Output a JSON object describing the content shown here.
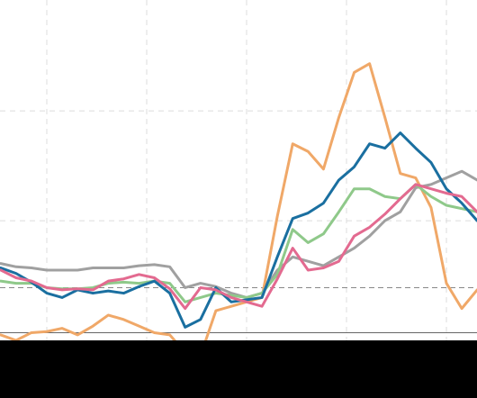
{
  "chart_data": {
    "type": "line",
    "xlim": [
      -6.09,
      55.98
    ],
    "xticks": [
      0,
      13,
      26,
      39,
      52
    ],
    "ylim": [
      -0.09,
      3.01
    ],
    "yticks": [
      1,
      2
    ],
    "grid": true,
    "hlines": [
      0.39,
      -0.02
    ],
    "x": [
      -6,
      -4,
      -2,
      0,
      2,
      4,
      6,
      8,
      10,
      12,
      14,
      16,
      18,
      20,
      22,
      24,
      26,
      28,
      30,
      32,
      34,
      36,
      38,
      40,
      42,
      44,
      46,
      48,
      50,
      52,
      54,
      56
    ],
    "series": [
      {
        "color": "#f0a868",
        "values": [
          -0.04,
          -0.09,
          -0.02,
          -0.01,
          0.02,
          -0.04,
          0.04,
          0.14,
          0.1,
          0.04,
          -0.02,
          -0.04,
          -0.2,
          -0.23,
          0.18,
          0.22,
          0.26,
          0.3,
          1.04,
          1.7,
          1.63,
          1.47,
          1.94,
          2.35,
          2.43,
          1.94,
          1.43,
          1.39,
          1.12,
          0.43,
          0.2,
          0.37
        ]
      },
      {
        "color": "#a0a0a0",
        "values": [
          0.61,
          0.58,
          0.57,
          0.55,
          0.55,
          0.55,
          0.57,
          0.57,
          0.57,
          0.59,
          0.6,
          0.58,
          0.39,
          0.43,
          0.4,
          0.34,
          0.3,
          0.34,
          0.55,
          0.67,
          0.63,
          0.59,
          0.67,
          0.75,
          0.86,
          1.0,
          1.08,
          1.3,
          1.33,
          1.39,
          1.45,
          1.37
        ]
      },
      {
        "color": "#8fc98a",
        "values": [
          0.45,
          0.43,
          0.43,
          0.39,
          0.38,
          0.38,
          0.39,
          0.43,
          0.44,
          0.43,
          0.45,
          0.43,
          0.26,
          0.3,
          0.34,
          0.32,
          0.3,
          0.34,
          0.51,
          0.92,
          0.8,
          0.88,
          1.08,
          1.29,
          1.29,
          1.22,
          1.2,
          1.33,
          1.22,
          1.14,
          1.11,
          1.08
        ]
      },
      {
        "color": "#1a6fa0",
        "values": [
          0.57,
          0.52,
          0.44,
          0.34,
          0.3,
          0.37,
          0.34,
          0.36,
          0.34,
          0.4,
          0.45,
          0.34,
          0.03,
          0.1,
          0.39,
          0.26,
          0.28,
          0.3,
          0.67,
          1.02,
          1.07,
          1.16,
          1.37,
          1.49,
          1.7,
          1.66,
          1.8,
          1.66,
          1.53,
          1.29,
          1.16,
          1.0
        ]
      },
      {
        "color": "#e36a90",
        "values": [
          0.55,
          0.48,
          0.45,
          0.39,
          0.37,
          0.38,
          0.37,
          0.45,
          0.47,
          0.51,
          0.48,
          0.38,
          0.2,
          0.39,
          0.37,
          0.3,
          0.26,
          0.22,
          0.47,
          0.75,
          0.55,
          0.57,
          0.63,
          0.86,
          0.94,
          1.06,
          1.2,
          1.33,
          1.29,
          1.25,
          1.22,
          1.08
        ]
      }
    ]
  }
}
